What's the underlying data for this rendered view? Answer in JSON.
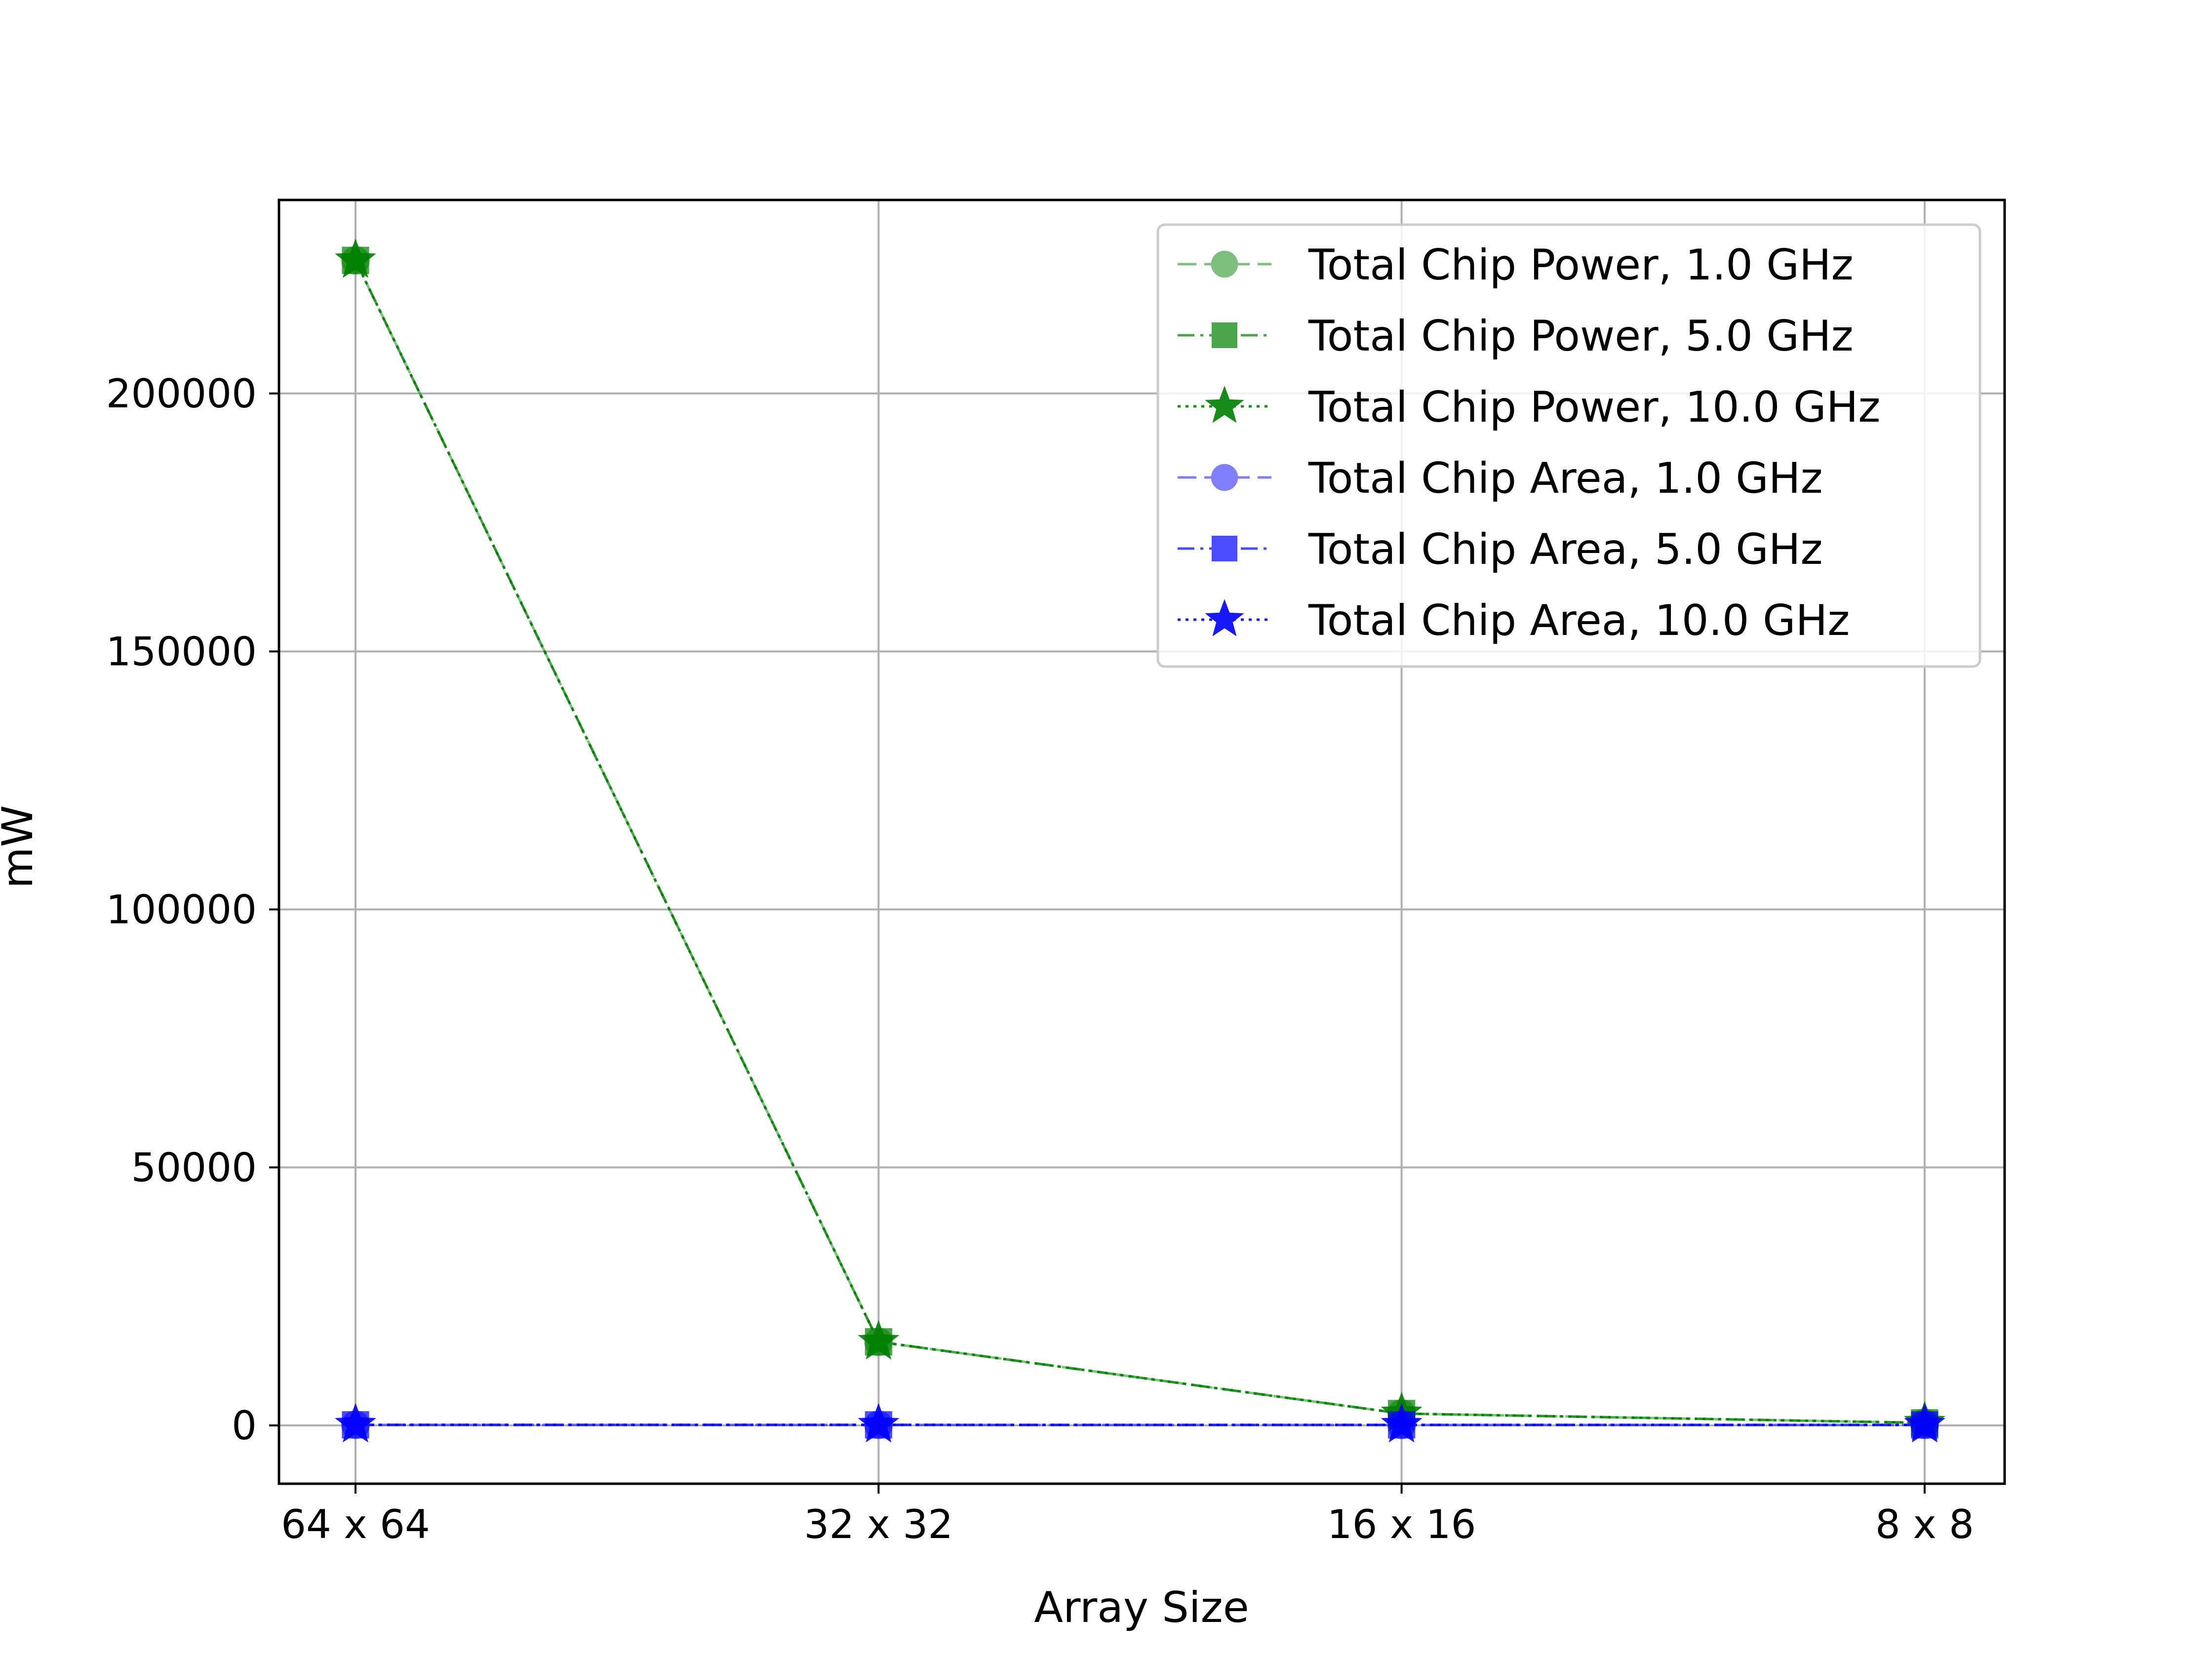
{
  "chart_data": {
    "type": "line",
    "title": "",
    "xlabel": "Array Size",
    "ylabel": "mW",
    "categories": [
      "64 x 64",
      "32 x 32",
      "16 x 16",
      "8 x 8"
    ],
    "ylim": [
      -11300,
      237500
    ],
    "yticks": [
      0,
      50000,
      100000,
      150000,
      200000
    ],
    "grid": true,
    "legend_position": "top-right",
    "series": [
      {
        "name": "Total Chip Power, 1.0 GHz",
        "values": [
          225800,
          16200,
          2300,
          500
        ],
        "color": "#008000",
        "marker": "circle",
        "linestyle": "dashed",
        "opacity": 0.5
      },
      {
        "name": "Total Chip Power, 5.0 GHz",
        "values": [
          225800,
          16200,
          2300,
          500
        ],
        "color": "#008000",
        "marker": "square",
        "linestyle": "dashdot",
        "opacity": 0.7
      },
      {
        "name": "Total Chip Power, 10.0 GHz",
        "values": [
          225800,
          16200,
          2300,
          500
        ],
        "color": "#008000",
        "marker": "star",
        "linestyle": "dotted",
        "opacity": 0.9
      },
      {
        "name": "Total Chip Area, 1.0 GHz",
        "values": [
          120,
          110,
          100,
          100
        ],
        "color": "#0000ff",
        "marker": "circle",
        "linestyle": "dashed",
        "opacity": 0.5
      },
      {
        "name": "Total Chip Area, 5.0 GHz",
        "values": [
          120,
          110,
          100,
          100
        ],
        "color": "#0000ff",
        "marker": "square",
        "linestyle": "dashdot",
        "opacity": 0.7
      },
      {
        "name": "Total Chip Area, 10.0 GHz",
        "values": [
          120,
          110,
          100,
          100
        ],
        "color": "#0000ff",
        "marker": "star",
        "linestyle": "dotted",
        "opacity": 0.9
      }
    ]
  }
}
